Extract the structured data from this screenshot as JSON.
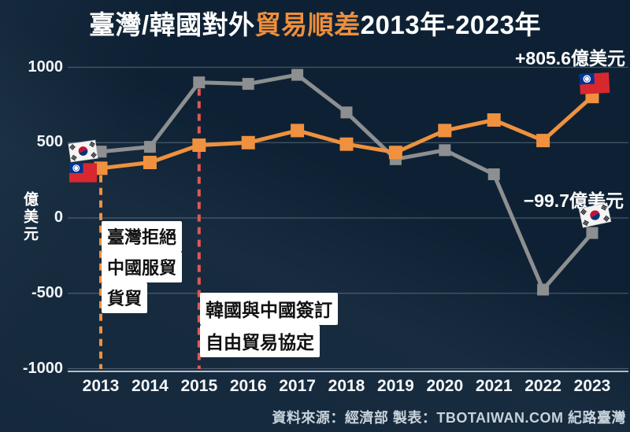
{
  "title": {
    "part1": "臺灣/韓國對外",
    "part2": "貿易順差",
    "part3": "2013年-2023年"
  },
  "colors": {
    "background": "#0e2134",
    "accent_orange": "#ef913e",
    "korea_gray": "#8d8f90",
    "event_red": "#e25757",
    "gridline": "rgba(200,215,230,0.30)",
    "axis": "rgba(215,228,240,0.8)"
  },
  "chart_data": {
    "type": "line",
    "categories": [
      "2013",
      "2014",
      "2015",
      "2016",
      "2017",
      "2018",
      "2019",
      "2020",
      "2021",
      "2022",
      "2023"
    ],
    "series": [
      {
        "name": "臺灣",
        "color": "#ef913e",
        "marker": "square",
        "marker_size": 17,
        "values": [
          330,
          368,
          483,
          500,
          580,
          490,
          435,
          580,
          650,
          514,
          805.6
        ]
      },
      {
        "name": "韓國",
        "color": "#8d8f90",
        "marker": "square",
        "marker_size": 15,
        "values": [
          440,
          472,
          900,
          890,
          950,
          700,
          390,
          450,
          290,
          -475,
          -99.7
        ]
      }
    ],
    "title": "臺灣/韓國對外貿易順差2013年-2023年",
    "xlabel": "",
    "ylabel": "億美元",
    "ylim": [
      -1000,
      1000
    ],
    "y_ticks": [
      "1000",
      "500",
      "0",
      "-500",
      "-1000"
    ],
    "grid": "on",
    "legend": "none (flag icons mark series endpoints)",
    "events": [
      {
        "year": "2013",
        "color": "#ef913e",
        "style": "dashed"
      },
      {
        "year": "2015",
        "color": "#e25757",
        "style": "dashed"
      }
    ]
  },
  "annotations": {
    "taiwan_end": "+805.6億美元",
    "korea_end": "−99.7億美元",
    "event_2013_lines": [
      "臺灣拒絕",
      "中國服貿",
      "貨貿"
    ],
    "event_2015_lines": [
      "韓國與中國簽訂",
      "自由貿易協定"
    ]
  },
  "source": "資料來源：經濟部 製表：TBOTAIWAN.COM 紀路臺灣"
}
